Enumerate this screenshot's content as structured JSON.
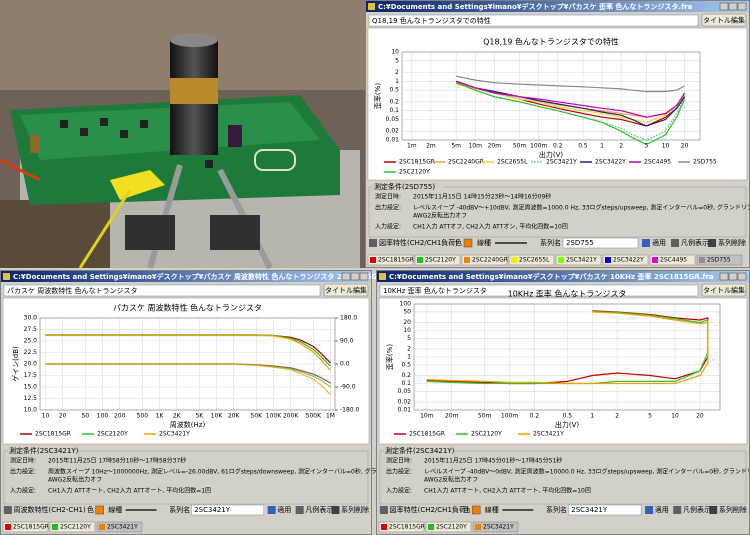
{
  "windows": [
    {
      "title": "C:¥Documents and Settings¥imano¥デスクトップ¥パカスケ  歪率  色んなトランジスタ.fra",
      "title_button": "タイトル編集",
      "conditions": {
        "heading": "測定条件(2SD755)",
        "lines": [
          {
            "label": "測定日時:",
            "text": [
              "2015年11月15日 14時15分23秒～14時16分09秒"
            ]
          },
          {
            "label": "出力設定:",
            "text": [
              "レベルスイープ -40dBV～+10dBV, 測定周波数=1000.0 Hz, 33ログsteps/upsweep, 測定インターバル=0秒, グランドリフトなし,",
              "AWG2反転出力オフ"
            ]
          },
          {
            "label": "入力設定:",
            "text": [
              "CH1入力 ATTオフ, CH2入力 ATTオン, 平均化回数=10回"
            ]
          }
        ]
      },
      "controls": {
        "mode": "図率特性(CH2/CH1負荷)",
        "color_label": "色",
        "line_label": "線種",
        "series_label": "系列名",
        "series_value": "2SD755",
        "apply": "適用",
        "legend_toggle": "凡例表示",
        "delete": "系列削除"
      },
      "chips": [
        {
          "label": "2SC1815GR",
          "color": "#e00000"
        },
        {
          "label": "2SC2120Y",
          "color": "#20c020"
        },
        {
          "label": "2SC2240GR",
          "color": "#f08000"
        },
        {
          "label": "2SC2655L",
          "color": "#f0f000"
        },
        {
          "label": "2SC3421Y",
          "color": "#80ff00"
        },
        {
          "label": "2SC3422Y",
          "color": "#0000e0"
        },
        {
          "label": "2SC4495",
          "color": "#e000e0"
        },
        {
          "label": "2SD755",
          "color": "#909090"
        }
      ]
    },
    {
      "title": "C:¥Documents and Settings¥imano¥デスクトップ¥パカスケ  周波数特性  色んなトランジスタ  2SC1815GR.fra",
      "title_button": "タイトル編集",
      "conditions": {
        "heading": "測定条件(2SC3421Y)",
        "lines": [
          {
            "label": "測定日時:",
            "text": [
              "2015年11月25日 17時58分10秒～17時58分37秒"
            ]
          },
          {
            "label": "出力設定:",
            "text": [
              "周波数スイープ 10Hz～1000000Hz, 測定レベル=-26.00dBV, 61ログsteps/downsweep, 測定インターバル=0秒, グランドリフトなし,",
              "AWG2反転出力オフ"
            ]
          },
          {
            "label": "入力設定:",
            "text": [
              "CH1入力 ATTオート, CH2入力 ATTオート, 平均化回数=1回"
            ]
          }
        ]
      },
      "controls": {
        "mode": "周波数特性(CH2-CH1)",
        "color_label": "色",
        "line_label": "線種",
        "series_label": "系列名",
        "series_value": "2SC3421Y",
        "apply": "適用",
        "legend_toggle": "凡例表示",
        "delete": "系列削除"
      },
      "chips": [
        {
          "label": "2SC1815GR",
          "color": "#e00000"
        },
        {
          "label": "2SC2120Y",
          "color": "#20c020"
        },
        {
          "label": "2SC3421Y",
          "color": "#f08000"
        }
      ]
    },
    {
      "title": "C:¥Documents and Settings¥imano¥デスクトップ¥パカスケ  10KHz 歪率  2SC1815GR.fra",
      "title_button": "タイトル編集",
      "conditions": {
        "heading": "測定条件(2SC3421Y)",
        "lines": [
          {
            "label": "測定日時:",
            "text": [
              "2015年11月25日 17時45分01秒～17時45分51秒"
            ]
          },
          {
            "label": "出力設定:",
            "text": [
              "レベルスイープ -40dBV～0dBV, 測定周波数=10000.0 Hz, 33ログsteps/upsweep, 測定インターバル=0秒, グランドリフトなし,",
              "AWG2反転出力オフ"
            ]
          },
          {
            "label": "入力設定:",
            "text": [
              "CH1入力 ATTオート, CH2入力 ATTオート, 平均化回数=10回"
            ]
          }
        ]
      },
      "controls": {
        "mode": "図率特性(CH2/CH1負荷)",
        "color_label": "色",
        "line_label": "線種",
        "series_label": "系列名",
        "series_value": "2SC3421Y",
        "apply": "適用",
        "legend_toggle": "凡例表示",
        "delete": "系列削除"
      },
      "chips": [
        {
          "label": "2SC1815GR",
          "color": "#e00000"
        },
        {
          "label": "2SC2120Y",
          "color": "#20c020"
        },
        {
          "label": "2SC3421Y",
          "color": "#f08000"
        }
      ]
    }
  ],
  "chart_data": [
    {
      "type": "line",
      "title": "Q18,19 色んなトランジスタでの特性",
      "x_label": "出力(V)",
      "y_label": "歪率(%)",
      "x_scale": "log",
      "y_scale": "log",
      "grid": true,
      "x": [
        0.005,
        0.01,
        0.02,
        0.05,
        0.1,
        0.2,
        0.5,
        1,
        2,
        3,
        5,
        10,
        15,
        20
      ],
      "xlim": [
        0.0007,
        35
      ],
      "ylim": [
        0.01,
        10
      ],
      "xticks": [
        {
          "value": 0.001,
          "label": "1m"
        },
        {
          "value": 0.002,
          "label": "2m"
        },
        {
          "value": 0.005,
          "label": "5m"
        },
        {
          "value": 0.01,
          "label": "10m"
        },
        {
          "value": 0.02,
          "label": "20m"
        },
        {
          "value": 0.05,
          "label": "50m"
        },
        {
          "value": 0.1,
          "label": "100m"
        },
        0.2,
        0.5,
        1,
        2,
        5,
        10,
        20
      ],
      "yticks": [
        0.01,
        0.02,
        0.05,
        0.1,
        0.2,
        0.5,
        1,
        2,
        5,
        10
      ],
      "series": [
        {
          "name": "2SC1815GR",
          "color": "#c00000",
          "values": [
            1.0,
            0.6,
            0.4,
            0.25,
            0.17,
            0.12,
            0.08,
            0.06,
            0.05,
            0.04,
            0.03,
            0.06,
            0.12,
            0.3
          ]
        },
        {
          "name": "2SC2240GR",
          "color": "#f0a040",
          "values": [
            0.9,
            0.6,
            0.45,
            0.3,
            0.22,
            0.16,
            0.12,
            0.1,
            0.08,
            0.07,
            0.06,
            0.08,
            0.15,
            0.35
          ]
        },
        {
          "name": "2SC2655L",
          "color": "#e8d830",
          "values": [
            0.8,
            0.55,
            0.4,
            0.25,
            0.2,
            0.14,
            0.1,
            0.08,
            0.06,
            0.05,
            0.04,
            0.07,
            0.15,
            0.4
          ]
        },
        {
          "name": "2SC3421Y",
          "color": "#50c850",
          "dotted": true,
          "values": [
            0.9,
            0.5,
            0.3,
            0.2,
            0.14,
            0.1,
            0.06,
            0.04,
            0.025,
            0.015,
            0.01,
            0.02,
            0.08,
            0.3
          ]
        },
        {
          "name": "2SC3422Y",
          "color": "#202080",
          "values": [
            1.0,
            0.6,
            0.45,
            0.3,
            0.22,
            0.17,
            0.12,
            0.09,
            0.07,
            0.05,
            0.03,
            0.05,
            0.12,
            0.3
          ]
        },
        {
          "name": "2SC4495",
          "color": "#c000c0",
          "values": [
            1.0,
            0.6,
            0.4,
            0.3,
            0.25,
            0.2,
            0.15,
            0.12,
            0.1,
            0.08,
            0.06,
            0.08,
            0.15,
            0.4
          ]
        },
        {
          "name": "2SD755",
          "color": "#888888",
          "values": [
            1.5,
            1.1,
            0.9,
            0.8,
            0.75,
            0.7,
            0.65,
            0.6,
            0.55,
            0.5,
            0.45,
            0.45,
            0.5,
            0.7
          ]
        },
        {
          "name": "2SC2120Y",
          "color": "#30c030",
          "values": [
            0.9,
            0.5,
            0.3,
            0.2,
            0.14,
            0.1,
            0.06,
            0.04,
            0.02,
            0.012,
            0.007,
            0.015,
            0.06,
            0.25
          ]
        }
      ]
    },
    {
      "type": "line",
      "title": "パカスケ 周波数特性 色んなトランジスタ",
      "x_label": "周波数(Hz)",
      "y_label": "ゲイン(dB)",
      "x_scale": "log",
      "y_scale": "linear",
      "grid": true,
      "x": [
        10,
        20,
        50,
        100,
        200,
        500,
        1000,
        2000,
        5000,
        10000,
        20000,
        50000,
        100000,
        200000,
        300000,
        500000,
        700000,
        1000000
      ],
      "xlim": [
        8,
        1200000
      ],
      "ylim": [
        10,
        30
      ],
      "y2lim": [
        -180,
        180
      ],
      "xticks": [
        10,
        20,
        50,
        100,
        200,
        500,
        {
          "value": 1000,
          "label": "1K"
        },
        {
          "value": 2000,
          "label": "2K"
        },
        {
          "value": 5000,
          "label": "5K"
        },
        {
          "value": 10000,
          "label": "10K"
        },
        {
          "value": 20000,
          "label": "20K"
        },
        {
          "value": 50000,
          "label": "50K"
        },
        {
          "value": 100000,
          "label": "100K"
        },
        {
          "value": 200000,
          "label": "200K"
        },
        {
          "value": 500000,
          "label": "500K"
        },
        {
          "value": 1000000,
          "label": "1M"
        }
      ],
      "yticks": [
        {
          "value": 10,
          "label": "10.0"
        },
        12.5,
        {
          "value": 15,
          "label": "15.0"
        },
        17.5,
        {
          "value": 20,
          "label": "20.0"
        },
        22.5,
        {
          "value": 25,
          "label": "25.0"
        },
        27.5,
        {
          "value": 30,
          "label": "30.0"
        }
      ],
      "y2ticks": [
        {
          "value": 180,
          "label": "180.0"
        },
        {
          "value": 90,
          "label": "90.0"
        },
        {
          "value": 0,
          "label": "0.0"
        },
        {
          "value": -90,
          "label": "-90.0"
        },
        {
          "value": -180,
          "label": "-180.0"
        }
      ],
      "series": [
        {
          "name": "2SC1815GR",
          "color": "#a00000",
          "values": [
            26.3,
            26.3,
            26.3,
            26.3,
            26.3,
            26.3,
            26.3,
            26.3,
            26.3,
            26.3,
            26.3,
            26.3,
            26.2,
            25.8,
            25.2,
            23.8,
            22.2,
            20.2
          ],
          "phase": [
            0,
            0,
            0,
            0,
            0,
            0,
            0,
            0,
            0,
            0,
            0,
            -3,
            -8,
            -15,
            -25,
            -40,
            -55,
            -75
          ]
        },
        {
          "name": "2SC2120Y",
          "color": "#30c030",
          "values": [
            26.3,
            26.3,
            26.3,
            26.3,
            26.3,
            26.3,
            26.3,
            26.3,
            26.3,
            26.3,
            26.3,
            26.3,
            26.2,
            25.6,
            24.8,
            23.2,
            21.5,
            19.5
          ],
          "phase": [
            0,
            0,
            0,
            0,
            0,
            0,
            0,
            0,
            0,
            0,
            0,
            -4,
            -10,
            -18,
            -30,
            -48,
            -65,
            -90
          ]
        },
        {
          "name": "2SC3421Y",
          "color": "#f0a000",
          "values": [
            26.2,
            26.2,
            26.2,
            26.2,
            26.2,
            26.2,
            26.2,
            26.2,
            26.2,
            26.2,
            26.2,
            26.2,
            26.1,
            25.4,
            24.4,
            22.6,
            20.8,
            18.6
          ],
          "phase": [
            0,
            0,
            0,
            0,
            0,
            0,
            0,
            0,
            0,
            0,
            0,
            -5,
            -12,
            -22,
            -38,
            -60,
            -85,
            -120
          ]
        }
      ]
    },
    {
      "type": "line",
      "title": "10KHz 歪率 色んなトランジスタ",
      "x_label": "出力(V)",
      "y_label": "歪率(%)",
      "x_scale": "log",
      "y_scale": "log",
      "grid": true,
      "x": [
        0.01,
        0.02,
        0.05,
        0.1,
        0.2,
        0.5,
        1,
        2,
        5,
        10,
        20,
        25,
        25,
        20,
        10,
        5,
        2,
        1
      ],
      "xlim": [
        0.007,
        35
      ],
      "ylim": [
        0.01,
        100
      ],
      "xticks": [
        {
          "value": 0.01,
          "label": "10m"
        },
        {
          "value": 0.02,
          "label": "20m"
        },
        {
          "value": 0.05,
          "label": "50m"
        },
        {
          "value": 0.1,
          "label": "100m"
        },
        0.2,
        0.5,
        1,
        2,
        5,
        10,
        20
      ],
      "yticks": [
        0.01,
        0.02,
        0.05,
        0.1,
        0.2,
        0.5,
        1,
        2,
        5,
        10,
        20,
        50,
        100
      ],
      "series": [
        {
          "name": "2SC1815GR",
          "color": "#c00000",
          "values": [
            0.13,
            0.12,
            0.11,
            0.1,
            0.1,
            0.12,
            0.2,
            0.25,
            0.2,
            0.15,
            0.3,
            1,
            30,
            25,
            30,
            40,
            50,
            55
          ]
        },
        {
          "name": "2SC2120Y",
          "color": "#30c030",
          "values": [
            0.12,
            0.11,
            0.1,
            0.1,
            0.1,
            0.1,
            0.1,
            0.12,
            0.12,
            0.12,
            0.3,
            1.5,
            25,
            20,
            28,
            38,
            48,
            52
          ]
        },
        {
          "name": "2SC3421Y",
          "color": "#f0a000",
          "values": [
            0.14,
            0.13,
            0.12,
            0.11,
            0.11,
            0.1,
            0.1,
            0.1,
            0.1,
            0.1,
            0.2,
            0.6,
            20,
            18,
            25,
            35,
            45,
            50
          ]
        }
      ]
    }
  ]
}
